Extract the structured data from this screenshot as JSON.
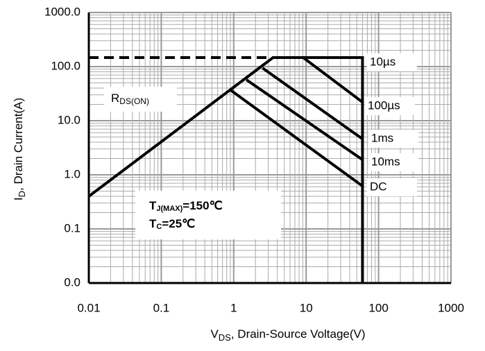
{
  "chart_data": {
    "type": "line",
    "xlog": true,
    "ylog": true,
    "grid": true,
    "xlabel": [
      "V",
      "DS",
      ", Drain-Source Voltage(V)"
    ],
    "ylabel": [
      "I",
      "D",
      ", Drain Current(A)"
    ],
    "xlim": [
      0.01,
      1000
    ],
    "ylim": [
      0.01,
      1000
    ],
    "xticks": [
      0.01,
      0.1,
      1,
      10,
      100,
      1000
    ],
    "yticks": [
      {
        "value": 1000,
        "label": "1000.0"
      },
      {
        "value": 100,
        "label": "100.0"
      },
      {
        "value": 10,
        "label": "10.0"
      },
      {
        "value": 1,
        "label": "1.0"
      },
      {
        "value": 0.1,
        "label": "0.1"
      },
      {
        "value": 0.01,
        "label": "0.0"
      }
    ],
    "series": [
      {
        "color": "#000000",
        "style": "dashed",
        "x": [
          0.01,
          3.5
        ],
        "values": [
          147,
          147
        ]
      },
      {
        "color": "#000000",
        "style": "solid",
        "x": [
          0.01,
          3.5
        ],
        "values": [
          0.4,
          147
        ]
      },
      {
        "name": "10µs",
        "color": "#000000",
        "style": "solid",
        "x": [
          3.5,
          60,
          60
        ],
        "values": [
          147,
          147,
          0.01
        ]
      },
      {
        "name": "100µs",
        "color": "#000000",
        "style": "solid",
        "x": [
          9.1,
          60
        ],
        "values": [
          147,
          22
        ]
      },
      {
        "name": "1ms",
        "color": "#000000",
        "style": "solid",
        "x": [
          2.5,
          60
        ],
        "values": [
          94,
          4.6
        ]
      },
      {
        "name": "10ms",
        "color": "#000000",
        "style": "solid",
        "x": [
          1.5,
          60
        ],
        "values": [
          57,
          1.9
        ]
      },
      {
        "name": "DC",
        "color": "#000000",
        "style": "solid",
        "x": [
          0.9,
          60
        ],
        "values": [
          37,
          0.62
        ]
      }
    ],
    "annotations": [
      {
        "text": "R",
        "sub": "DS(ON)"
      },
      {
        "text": "T",
        "sub": "J(MAX)",
        "tail": "=150℃"
      },
      {
        "text": "T",
        "sub": "C",
        "tail": "=25℃"
      }
    ]
  }
}
